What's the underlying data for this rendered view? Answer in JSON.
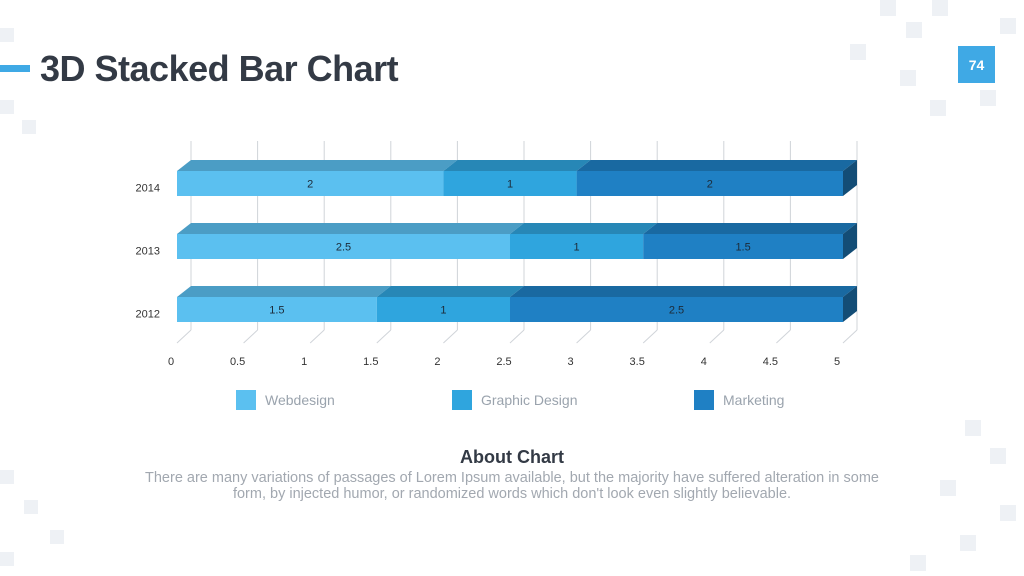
{
  "slide": {
    "title": "3D Stacked Bar Chart",
    "page_number": "74",
    "accent_color": "#3fa9e5"
  },
  "chart_data": {
    "type": "bar",
    "orientation": "horizontal",
    "stacked": true,
    "style": "3d",
    "categories": [
      "2014",
      "2013",
      "2012"
    ],
    "series": [
      {
        "name": "Webdesign",
        "color": "#5bc0f0",
        "values": [
          2,
          2.5,
          1.5
        ]
      },
      {
        "name": "Graphic Design",
        "color": "#2fa5de",
        "values": [
          1,
          1,
          1
        ]
      },
      {
        "name": "Marketing",
        "color": "#1f80c4",
        "values": [
          2,
          1.5,
          2.5
        ]
      }
    ],
    "xlim": [
      0,
      5
    ],
    "xticks": [
      "0",
      "0.5",
      "1",
      "1.5",
      "2",
      "2.5",
      "3",
      "3.5",
      "4",
      "4.5",
      "5"
    ],
    "grid": true,
    "legend": "bottom"
  },
  "about": {
    "title": "About Chart",
    "text": "There are many variations of passages of Lorem Ipsum available, but the majority have suffered alteration in some form, by injected humor, or randomized words which don't look even slightly believable."
  }
}
